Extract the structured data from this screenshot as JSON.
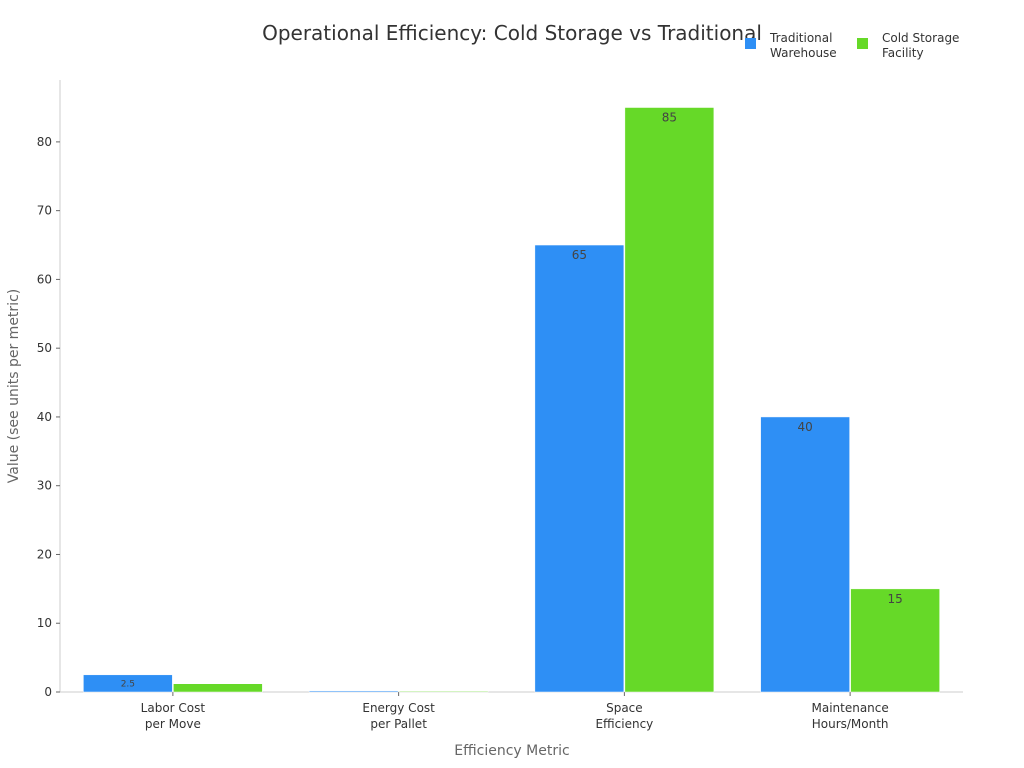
{
  "chart_data": {
    "type": "bar",
    "title": "Operational Efficiency: Cold Storage vs Traditional",
    "xlabel": "Efficiency Metric",
    "ylabel": "Value (see units per metric)",
    "categories": [
      [
        "Labor Cost",
        "per Move"
      ],
      [
        "Energy Cost",
        "per Pallet"
      ],
      [
        "Space",
        "Efficiency"
      ],
      [
        "Maintenance",
        "Hours/Month"
      ]
    ],
    "series": [
      {
        "name": [
          "Traditional",
          "Warehouse"
        ],
        "color": "#2e8ff5",
        "values": [
          2.5,
          0.15,
          65,
          40
        ],
        "labels": [
          "2.5",
          "",
          "65",
          "40"
        ]
      },
      {
        "name": [
          "Cold Storage",
          "Facility"
        ],
        "color": "#66d928",
        "values": [
          1.2,
          0.08,
          85,
          15
        ],
        "labels": [
          "",
          "",
          "85",
          "15"
        ]
      }
    ],
    "ylim": [
      0,
      89
    ],
    "yticks": [
      0,
      10,
      20,
      30,
      40,
      50,
      60,
      70,
      80
    ],
    "grid": false,
    "legend_position": "top-right"
  }
}
